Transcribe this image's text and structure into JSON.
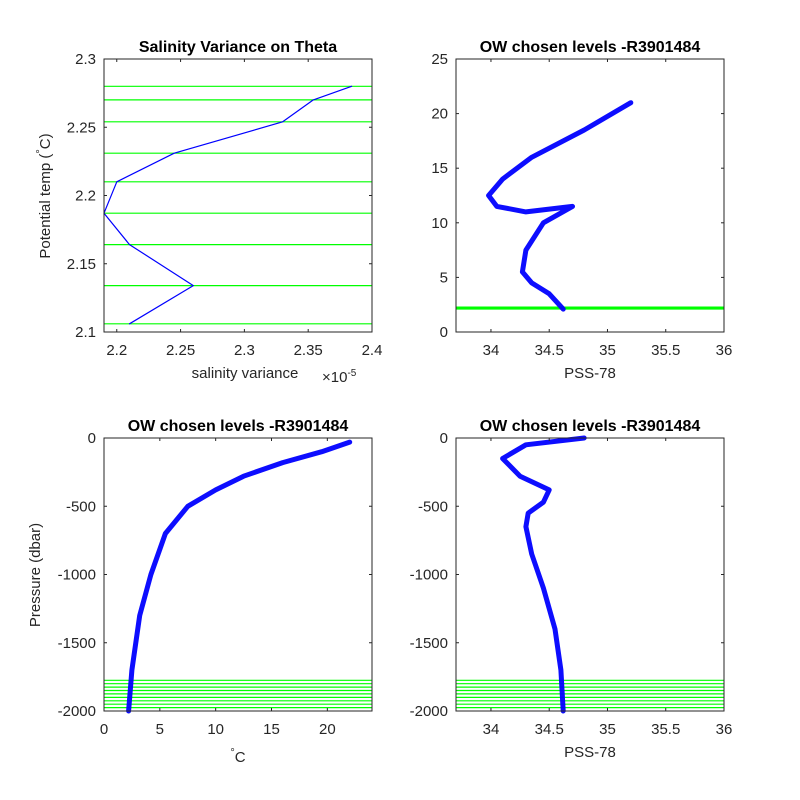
{
  "colors": {
    "profile": "#0000ff",
    "level": "#00ff00",
    "axis": "#262626",
    "background": "#ffffff"
  },
  "chart_data": [
    {
      "type": "line",
      "title": "Salinity Variance on Theta",
      "xlabel": "salinity variance",
      "x_exponent_text": "×10",
      "x_exponent_power": "-5",
      "ylabel_prefix": "Potential temp (",
      "ylabel_degree": "°",
      "ylabel_suffix": "C)",
      "xlim": [
        2.19,
        2.4
      ],
      "ylim": [
        2.1,
        2.3
      ],
      "xticks": [
        2.2,
        2.25,
        2.3,
        2.35,
        2.4
      ],
      "xtick_labels": [
        "2.2",
        "2.25",
        "2.3",
        "2.35",
        "2.4"
      ],
      "yticks": [
        2.1,
        2.15,
        2.2,
        2.25,
        2.3
      ],
      "ytick_labels": [
        "2.1",
        "2.15",
        "2.2",
        "2.25",
        "2.3"
      ],
      "series": [
        {
          "x": [
            2.384,
            2.354,
            2.33,
            2.245,
            2.2,
            2.19,
            2.21,
            2.26,
            2.21
          ],
          "y": [
            2.28,
            2.27,
            2.254,
            2.231,
            2.21,
            2.187,
            2.164,
            2.134,
            2.106
          ]
        }
      ],
      "chosen_levels": [
        2.106,
        2.134,
        2.164,
        2.187,
        2.21,
        2.231,
        2.254,
        2.27,
        2.28
      ]
    },
    {
      "type": "line",
      "title": "OW chosen levels -R3901484",
      "xlabel": "PSS-78",
      "xlim": [
        33.7,
        36
      ],
      "ylim": [
        0,
        25
      ],
      "xticks": [
        34,
        34.5,
        35,
        35.5,
        36
      ],
      "xtick_labels": [
        "34",
        "34.5",
        "35",
        "35.5",
        "36"
      ],
      "yticks": [
        0,
        5,
        10,
        15,
        20,
        25
      ],
      "ytick_labels": [
        "0",
        "5",
        "10",
        "15",
        "20",
        "25"
      ],
      "series": [
        {
          "x": [
            34.62,
            34.5,
            34.35,
            34.27,
            34.3,
            34.45,
            34.7,
            34.3,
            34.05,
            33.98,
            34.1,
            34.35,
            34.8,
            35.2
          ],
          "y": [
            2.1,
            3.5,
            4.5,
            5.5,
            7.5,
            10.0,
            11.5,
            11.0,
            11.5,
            12.5,
            14.0,
            16.0,
            18.5,
            21.0
          ]
        }
      ],
      "chosen_levels": [
        2.11,
        2.13,
        2.16,
        2.19,
        2.21,
        2.23,
        2.25,
        2.27,
        2.28
      ]
    },
    {
      "type": "line",
      "title": "OW chosen levels -R3901484",
      "xlabel_degree": "°",
      "xlabel_unit": "C",
      "ylabel": "Pressure (dbar)",
      "xlim": [
        0,
        24
      ],
      "ylim": [
        -2000,
        0
      ],
      "xticks": [
        0,
        5,
        10,
        15,
        20
      ],
      "xtick_labels": [
        "0",
        "5",
        "10",
        "15",
        "20"
      ],
      "yticks": [
        -2000,
        -1500,
        -1000,
        -500,
        0
      ],
      "ytick_labels": [
        "-2000",
        "-1500",
        "-1000",
        "-500",
        "0"
      ],
      "series": [
        {
          "x": [
            2.2,
            2.5,
            3.2,
            4.2,
            5.5,
            7.5,
            10.0,
            12.5,
            16.0,
            19.5,
            22.0
          ],
          "y": [
            -2000,
            -1700,
            -1300,
            -1000,
            -700,
            -500,
            -380,
            -280,
            -180,
            -100,
            -30
          ]
        }
      ],
      "chosen_levels": [
        -1775,
        -1800,
        -1825,
        -1850,
        -1875,
        -1900,
        -1925,
        -1950,
        -1975
      ]
    },
    {
      "type": "line",
      "title": "OW chosen levels -R3901484",
      "xlabel": "PSS-78",
      "xlim": [
        33.7,
        36
      ],
      "ylim": [
        -2000,
        0
      ],
      "xticks": [
        34,
        34.5,
        35,
        35.5,
        36
      ],
      "xtick_labels": [
        "34",
        "34.5",
        "35",
        "35.5",
        "36"
      ],
      "yticks": [
        -2000,
        -1500,
        -1000,
        -500,
        0
      ],
      "ytick_labels": [
        "-2000",
        "-1500",
        "-1000",
        "-500",
        "0"
      ],
      "series": [
        {
          "x": [
            34.62,
            34.6,
            34.55,
            34.45,
            34.35,
            34.3,
            34.32,
            34.45,
            34.5,
            34.25,
            34.1,
            34.3,
            34.8
          ],
          "y": [
            -2000,
            -1700,
            -1400,
            -1100,
            -850,
            -650,
            -550,
            -470,
            -380,
            -280,
            -150,
            -50,
            0
          ]
        }
      ],
      "chosen_levels": [
        -1775,
        -1800,
        -1825,
        -1850,
        -1875,
        -1900,
        -1925,
        -1950,
        -1975
      ]
    }
  ]
}
